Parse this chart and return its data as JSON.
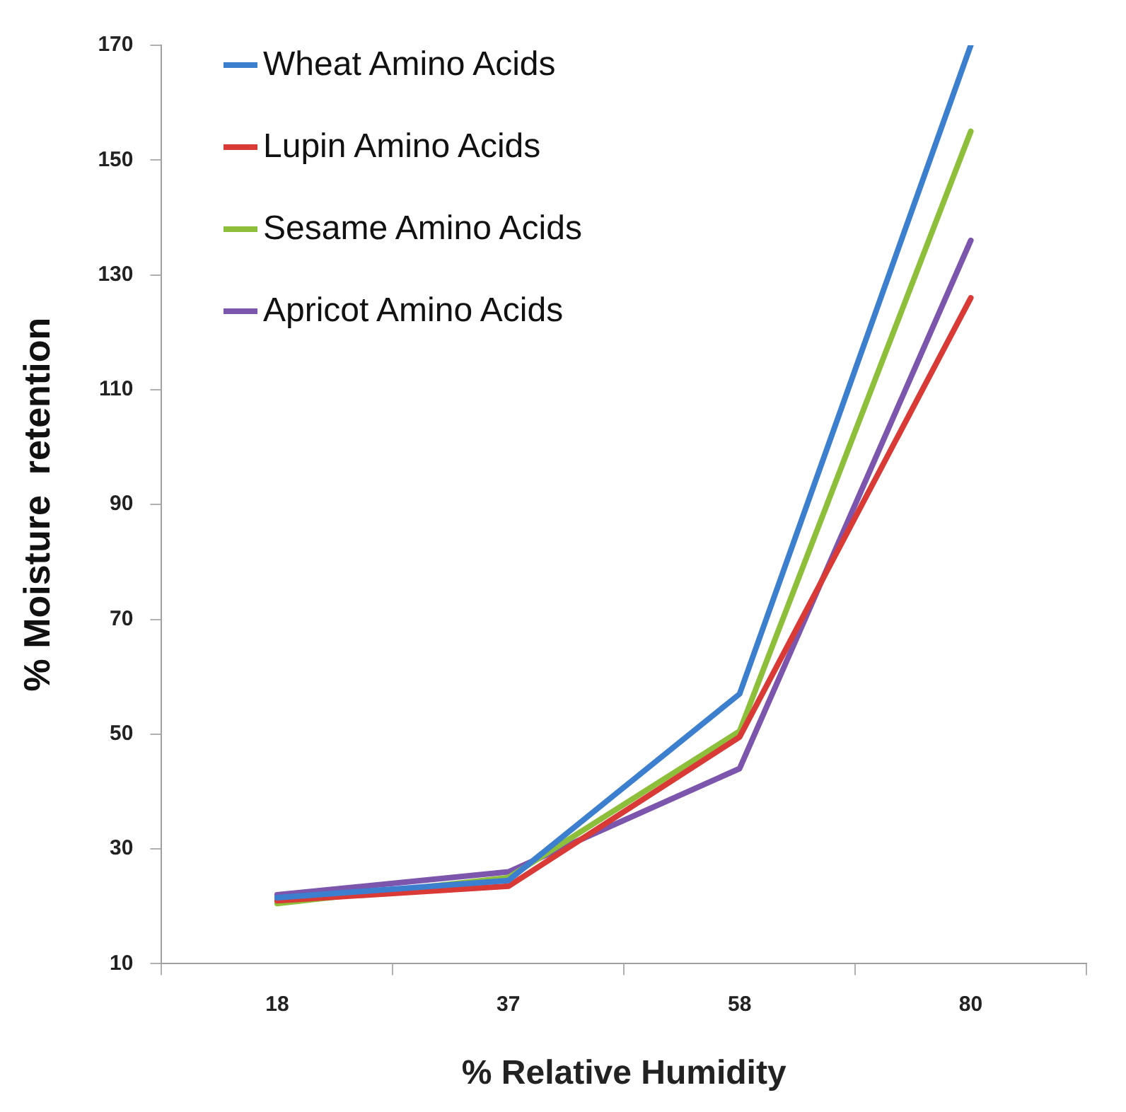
{
  "chart_data": {
    "type": "line",
    "xlabel": "% Relative Humidity",
    "ylabel": "% Moisture  retention",
    "categories": [
      "18",
      "37",
      "58",
      "80"
    ],
    "series": [
      {
        "name": "Wheat Amino Acids",
        "color": "#3d7fcf",
        "values": [
          21.5,
          24.5,
          57,
          170
        ]
      },
      {
        "name": "Lupin Amino Acids",
        "color": "#d93a36",
        "values": [
          21,
          23.5,
          49.5,
          126
        ]
      },
      {
        "name": "Sesame Amino Acids",
        "color": "#8dbf3a",
        "values": [
          20.5,
          25,
          50.5,
          155
        ]
      },
      {
        "name": "Apricot Amino Acids",
        "color": "#7c55ac",
        "values": [
          22,
          26,
          44,
          136
        ]
      }
    ],
    "ylim": [
      10,
      170
    ],
    "yticks": [
      10,
      30,
      50,
      70,
      90,
      110,
      130,
      150,
      170
    ],
    "grid": false,
    "legend": "top left",
    "marker": "none",
    "line_style": "solid"
  }
}
